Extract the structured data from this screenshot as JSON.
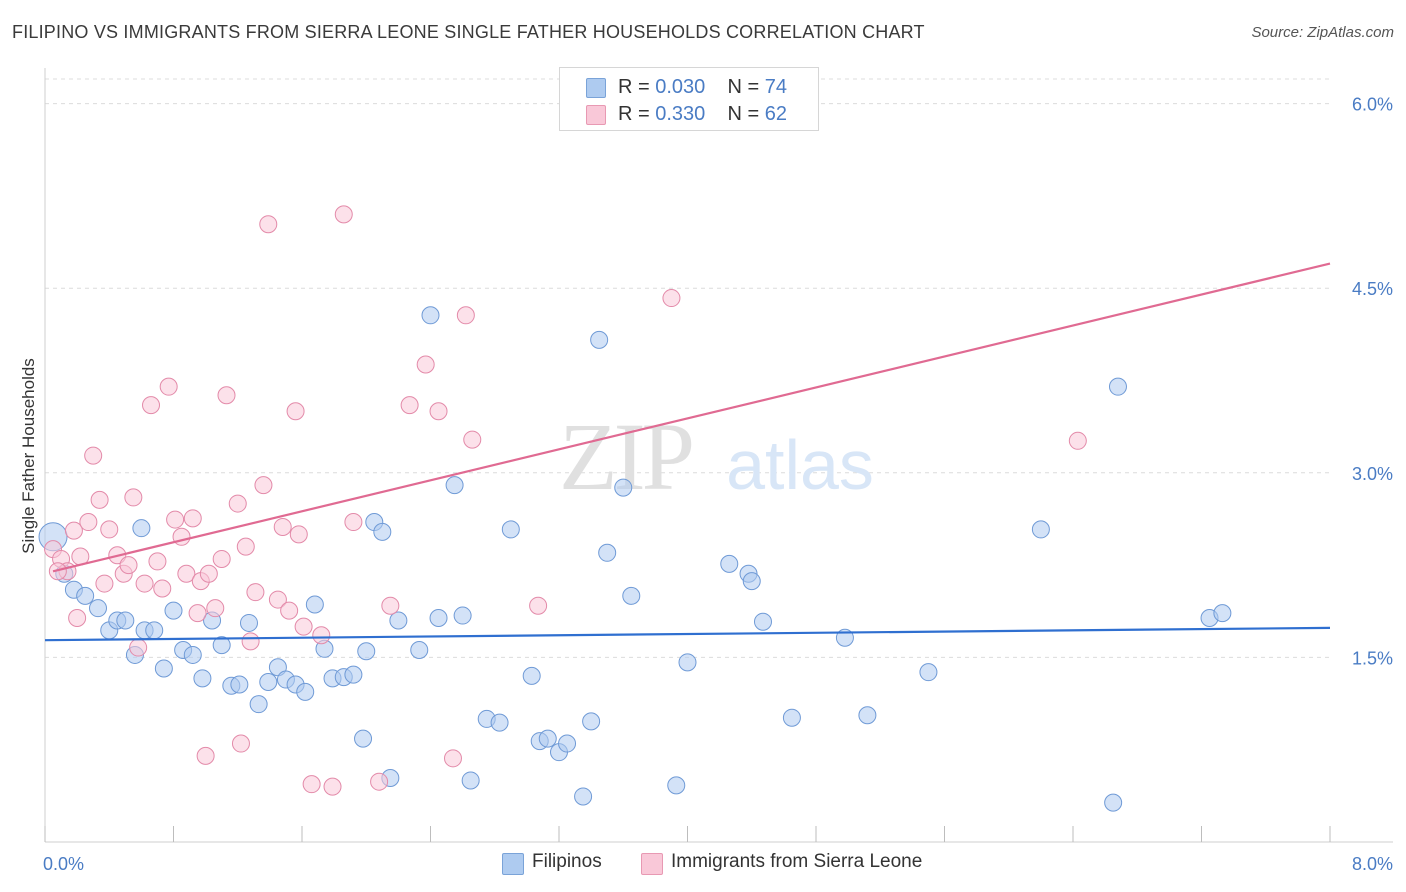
{
  "title": "FILIPINO VS IMMIGRANTS FROM SIERRA LEONE SINGLE FATHER HOUSEHOLDS CORRELATION CHART",
  "source": "Source: ZipAtlas.com",
  "watermark": {
    "zip": "ZIP",
    "atlas": "atlas"
  },
  "legend": {
    "r_label": "R =",
    "n_label": "N =",
    "rows": [
      {
        "r": "0.030",
        "n": "74",
        "color": "#aecbf0",
        "border": "#7aa3d8"
      },
      {
        "r": "0.330",
        "n": "62",
        "color": "#f9c8d8",
        "border": "#e899b3"
      }
    ]
  },
  "chart_data": {
    "type": "scatter",
    "ylabel": "Single Father Households",
    "xlim": [
      0,
      8
    ],
    "ylim": [
      0,
      6.2
    ],
    "x_tick_labels": [
      "0.0%",
      "8.0%"
    ],
    "y_ticks": [
      1.5,
      3.0,
      4.5,
      6.0
    ],
    "y_tick_labels": [
      "1.5%",
      "3.0%",
      "4.5%",
      "6.0%"
    ],
    "grid": true,
    "series": [
      {
        "name": "Filipinos",
        "color": "#aecbf0",
        "stroke": "#6f9ad6",
        "trend_color": "#2f6fd0",
        "trend": [
          [
            0,
            1.64
          ],
          [
            8,
            1.74
          ]
        ],
        "points": [
          [
            0.05,
            2.48
          ],
          [
            0.12,
            2.18
          ],
          [
            0.18,
            2.05
          ],
          [
            0.25,
            2.0
          ],
          [
            0.33,
            1.9
          ],
          [
            0.4,
            1.72
          ],
          [
            0.45,
            1.8
          ],
          [
            0.5,
            1.8
          ],
          [
            0.56,
            1.52
          ],
          [
            0.62,
            1.72
          ],
          [
            0.68,
            1.72
          ],
          [
            0.74,
            1.41
          ],
          [
            0.8,
            1.88
          ],
          [
            0.86,
            1.56
          ],
          [
            0.92,
            1.52
          ],
          [
            0.98,
            1.33
          ],
          [
            1.04,
            1.8
          ],
          [
            1.1,
            1.6
          ],
          [
            1.16,
            1.27
          ],
          [
            1.21,
            1.28
          ],
          [
            1.27,
            1.78
          ],
          [
            1.33,
            1.12
          ],
          [
            1.39,
            1.3
          ],
          [
            1.45,
            1.42
          ],
          [
            1.5,
            1.32
          ],
          [
            1.56,
            1.28
          ],
          [
            1.62,
            1.22
          ],
          [
            1.68,
            1.93
          ],
          [
            1.74,
            1.57
          ],
          [
            1.79,
            1.33
          ],
          [
            1.86,
            1.34
          ],
          [
            1.92,
            1.36
          ],
          [
            1.98,
            0.84
          ],
          [
            2.0,
            1.55
          ],
          [
            2.05,
            2.6
          ],
          [
            2.1,
            2.52
          ],
          [
            2.15,
            0.52
          ],
          [
            2.2,
            1.8
          ],
          [
            2.33,
            1.56
          ],
          [
            2.4,
            4.28
          ],
          [
            2.45,
            1.82
          ],
          [
            2.55,
            2.9
          ],
          [
            2.6,
            1.84
          ],
          [
            2.65,
            0.5
          ],
          [
            2.75,
            1.0
          ],
          [
            2.83,
            0.97
          ],
          [
            2.9,
            2.54
          ],
          [
            3.03,
            1.35
          ],
          [
            3.08,
            0.82
          ],
          [
            3.13,
            0.84
          ],
          [
            3.2,
            0.73
          ],
          [
            3.25,
            0.8
          ],
          [
            3.35,
            0.37
          ],
          [
            3.4,
            0.98
          ],
          [
            3.45,
            4.08
          ],
          [
            3.5,
            2.35
          ],
          [
            3.6,
            2.88
          ],
          [
            3.65,
            2.0
          ],
          [
            3.93,
            0.46
          ],
          [
            4.0,
            1.46
          ],
          [
            4.26,
            2.26
          ],
          [
            4.38,
            2.18
          ],
          [
            4.4,
            2.12
          ],
          [
            4.47,
            1.79
          ],
          [
            4.65,
            1.01
          ],
          [
            4.98,
            1.66
          ],
          [
            5.12,
            1.03
          ],
          [
            5.5,
            1.38
          ],
          [
            6.2,
            2.54
          ],
          [
            6.65,
            0.32
          ],
          [
            6.68,
            3.7
          ],
          [
            7.25,
            1.82
          ],
          [
            7.33,
            1.86
          ],
          [
            0.6,
            2.55
          ]
        ]
      },
      {
        "name": "Immigrants from Sierra Leone",
        "color": "#f9c8d8",
        "stroke": "#e38aa9",
        "trend_color": "#e06a92",
        "trend": [
          [
            0.05,
            2.2
          ],
          [
            8,
            4.7
          ]
        ],
        "points": [
          [
            0.05,
            2.38
          ],
          [
            0.1,
            2.3
          ],
          [
            0.14,
            2.2
          ],
          [
            0.18,
            2.53
          ],
          [
            0.22,
            2.32
          ],
          [
            0.27,
            2.6
          ],
          [
            0.3,
            3.14
          ],
          [
            0.34,
            2.78
          ],
          [
            0.37,
            2.1
          ],
          [
            0.4,
            2.54
          ],
          [
            0.45,
            2.33
          ],
          [
            0.49,
            2.18
          ],
          [
            0.52,
            2.25
          ],
          [
            0.55,
            2.8
          ],
          [
            0.58,
            1.58
          ],
          [
            0.62,
            2.1
          ],
          [
            0.66,
            3.55
          ],
          [
            0.7,
            2.28
          ],
          [
            0.73,
            2.06
          ],
          [
            0.77,
            3.7
          ],
          [
            0.81,
            2.62
          ],
          [
            0.85,
            2.48
          ],
          [
            0.88,
            2.18
          ],
          [
            0.92,
            2.63
          ],
          [
            0.95,
            1.86
          ],
          [
            0.97,
            2.12
          ],
          [
            1.02,
            2.18
          ],
          [
            1.06,
            1.9
          ],
          [
            1.1,
            2.3
          ],
          [
            1.13,
            3.63
          ],
          [
            1.2,
            2.75
          ],
          [
            1.22,
            0.8
          ],
          [
            1.25,
            2.4
          ],
          [
            1.28,
            1.63
          ],
          [
            1.31,
            2.03
          ],
          [
            1.36,
            2.9
          ],
          [
            1.39,
            5.02
          ],
          [
            1.45,
            1.97
          ],
          [
            1.48,
            2.56
          ],
          [
            1.52,
            1.88
          ],
          [
            1.56,
            3.5
          ],
          [
            1.58,
            2.5
          ],
          [
            1.61,
            1.75
          ],
          [
            1.66,
            0.47
          ],
          [
            1.72,
            1.68
          ],
          [
            1.79,
            0.45
          ],
          [
            1.86,
            5.1
          ],
          [
            1.92,
            2.6
          ],
          [
            2.08,
            0.49
          ],
          [
            2.27,
            3.55
          ],
          [
            2.37,
            3.88
          ],
          [
            2.45,
            3.5
          ],
          [
            2.54,
            0.68
          ],
          [
            2.62,
            4.28
          ],
          [
            2.66,
            3.27
          ],
          [
            3.07,
            1.92
          ],
          [
            3.9,
            4.42
          ],
          [
            6.43,
            3.26
          ],
          [
            0.2,
            1.82
          ],
          [
            1.0,
            0.7
          ],
          [
            2.15,
            1.92
          ],
          [
            0.08,
            2.2
          ]
        ]
      }
    ]
  }
}
